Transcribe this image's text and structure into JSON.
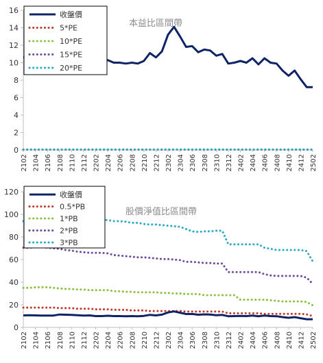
{
  "chart_data": [
    {
      "type": "line",
      "title": "本益比區間帶",
      "xlabel": "",
      "ylabel": "",
      "ylim": [
        0,
        16
      ],
      "yticks": [
        0,
        2,
        4,
        6,
        8,
        10,
        12,
        14,
        16
      ],
      "x_tick_labels": [
        "2102",
        "2104",
        "2106",
        "2108",
        "2110",
        "2112",
        "2202",
        "2204",
        "2206",
        "2208",
        "2210",
        "2212",
        "2302",
        "2304",
        "2306",
        "2308",
        "2310",
        "2312",
        "2402",
        "2404",
        "2406",
        "2408",
        "2410",
        "2412",
        "2502"
      ],
      "legend_position": "top-left",
      "grid": false,
      "colors": {
        "close": "#0d2366",
        "pe5": "#c0392b",
        "pe10": "#8bbf3e",
        "pe15": "#6b4c9a",
        "pe20": "#2aa9c2"
      },
      "series": [
        {
          "name": "收盤價",
          "key": "close",
          "style": "solid",
          "values": [
            10.6,
            10.7,
            10.6,
            10.5,
            10.4,
            10.5,
            11.4,
            11.2,
            11.0,
            10.7,
            10.4,
            10.6,
            10.0,
            10.0,
            10.3,
            10.0,
            10.0,
            9.9,
            10.0,
            9.9,
            10.2,
            11.1,
            10.6,
            11.3,
            13.2,
            14.1,
            13.0,
            11.8,
            11.9,
            11.2,
            11.5,
            11.4,
            10.8,
            11.0,
            9.9,
            10.0,
            10.2,
            10.0,
            10.5,
            9.8,
            10.5,
            10.0,
            9.9,
            9.1,
            8.5,
            9.1,
            8.1,
            7.2,
            7.2
          ]
        },
        {
          "name": "5*PE",
          "key": "pe5",
          "style": "dotted",
          "values": [
            0.05,
            0.05,
            0.05,
            0.05,
            0.05,
            0.05,
            0.05,
            0.05,
            0.05,
            0.05,
            0.05,
            0.05,
            0.05,
            0.05,
            0.05,
            0.05,
            0.05,
            0.05,
            0.05,
            0.05,
            0.05,
            0.05,
            0.05,
            0.05,
            0.05,
            0.05,
            0.05,
            0.05,
            0.05,
            0.05,
            0.05,
            0.05,
            0.05,
            0.05,
            0.05,
            0.05,
            0.05,
            0.05,
            0.05,
            0.05,
            0.05,
            0.05,
            0.05,
            0.05,
            0.05,
            0.05,
            0.05,
            0.05,
            0.05
          ]
        },
        {
          "name": "10*PE",
          "key": "pe10",
          "style": "dotted",
          "values": [
            0.05,
            0.05,
            0.05,
            0.05,
            0.05,
            0.05,
            0.05,
            0.05,
            0.05,
            0.05,
            0.05,
            0.05,
            0.05,
            0.05,
            0.05,
            0.05,
            0.05,
            0.05,
            0.05,
            0.05,
            0.05,
            0.05,
            0.05,
            0.05,
            0.05,
            0.05,
            0.05,
            0.05,
            0.05,
            0.05,
            0.05,
            0.05,
            0.05,
            0.05,
            0.05,
            0.05,
            0.05,
            0.05,
            0.05,
            0.05,
            0.05,
            0.05,
            0.05,
            0.05,
            0.05,
            0.05,
            0.05,
            0.05,
            0.05
          ]
        },
        {
          "name": "15*PE",
          "key": "pe15",
          "style": "dotted",
          "values": [
            0.05,
            0.05,
            0.05,
            0.05,
            0.05,
            0.05,
            0.05,
            0.05,
            0.05,
            0.05,
            0.05,
            0.05,
            0.05,
            0.05,
            0.05,
            0.05,
            0.05,
            0.05,
            0.05,
            0.05,
            0.05,
            0.05,
            0.05,
            0.05,
            0.05,
            0.05,
            0.05,
            0.05,
            0.05,
            0.05,
            0.05,
            0.05,
            0.05,
            0.05,
            0.05,
            0.05,
            0.05,
            0.05,
            0.05,
            0.05,
            0.05,
            0.05,
            0.05,
            0.05,
            0.05,
            0.05,
            0.05,
            0.05,
            0.05
          ]
        },
        {
          "name": "20*PE",
          "key": "pe20",
          "style": "dotted",
          "values": [
            0.05,
            0.05,
            0.05,
            0.05,
            0.05,
            0.05,
            0.05,
            0.05,
            0.05,
            0.05,
            0.05,
            0.05,
            0.05,
            0.05,
            0.05,
            0.05,
            0.05,
            0.05,
            0.05,
            0.05,
            0.05,
            0.05,
            0.05,
            0.05,
            0.05,
            0.05,
            0.05,
            0.05,
            0.05,
            0.05,
            0.05,
            0.05,
            0.05,
            0.05,
            0.05,
            0.05,
            0.05,
            0.05,
            0.05,
            0.05,
            0.05,
            0.05,
            0.05,
            0.05,
            0.05,
            0.05,
            0.05,
            0.05,
            0.05
          ]
        }
      ]
    },
    {
      "type": "line",
      "title": "股價淨值比區間帶",
      "xlabel": "",
      "ylabel": "",
      "ylim": [
        0,
        120
      ],
      "yticks": [
        0,
        20,
        40,
        60,
        80,
        100,
        120
      ],
      "x_tick_labels": [
        "2102",
        "2104",
        "2106",
        "2108",
        "2110",
        "2112",
        "2202",
        "2204",
        "2206",
        "2208",
        "2210",
        "2212",
        "2302",
        "2304",
        "2306",
        "2308",
        "2310",
        "2312",
        "2402",
        "2404",
        "2406",
        "2408",
        "2410",
        "2412",
        "2502"
      ],
      "legend_position": "top-left",
      "grid": false,
      "colors": {
        "close": "#0d2366",
        "pb05": "#c0392b",
        "pb1": "#8bbf3e",
        "pb2": "#6b4c9a",
        "pb3": "#2aa9c2"
      },
      "series": [
        {
          "name": "收盤價",
          "key": "close",
          "style": "solid",
          "values": [
            10.6,
            10.7,
            10.6,
            10.5,
            10.4,
            10.5,
            11.4,
            11.2,
            11.0,
            10.7,
            10.4,
            10.6,
            10.0,
            10.0,
            10.3,
            10.0,
            10.0,
            9.9,
            10.0,
            9.9,
            10.2,
            11.1,
            10.6,
            11.3,
            13.2,
            14.1,
            13.0,
            11.8,
            11.9,
            11.2,
            11.5,
            11.4,
            10.8,
            11.0,
            9.9,
            10.0,
            10.2,
            10.0,
            10.5,
            9.8,
            10.5,
            10.0,
            9.9,
            9.1,
            8.5,
            9.1,
            8.1,
            7.2,
            7.2
          ]
        },
        {
          "name": "0.5*PB",
          "key": "pb05",
          "style": "dotted",
          "values": [
            17.5,
            17.5,
            17.5,
            17.5,
            17.5,
            17.5,
            17.0,
            17.0,
            17.0,
            16.5,
            16.5,
            16.5,
            16.0,
            16.0,
            16.0,
            15.5,
            15.5,
            15.5,
            15.0,
            15.0,
            15.0,
            14.5,
            14.5,
            14.5,
            14.5,
            14.5,
            14.5,
            14.0,
            14.0,
            14.0,
            14.0,
            14.0,
            14.0,
            14.0,
            12.5,
            12.5,
            12.5,
            12.5,
            12.5,
            12.5,
            12.0,
            12.0,
            12.0,
            12.0,
            12.0,
            12.0,
            12.0,
            11.5,
            10.0
          ]
        },
        {
          "name": "1*PB",
          "key": "pb1",
          "style": "dotted",
          "values": [
            35.0,
            35.0,
            35.5,
            35.5,
            35.5,
            35.0,
            34.5,
            34.0,
            34.0,
            33.5,
            33.5,
            33.0,
            33.0,
            33.0,
            33.0,
            32.0,
            32.0,
            31.5,
            31.5,
            31.0,
            31.0,
            31.0,
            31.0,
            30.5,
            30.5,
            30.0,
            30.0,
            29.5,
            29.5,
            29.5,
            28.5,
            28.5,
            28.5,
            28.5,
            28.5,
            28.5,
            24.5,
            24.5,
            24.5,
            24.5,
            24.5,
            24.0,
            23.5,
            23.0,
            23.0,
            23.0,
            23.0,
            22.5,
            19.5
          ]
        },
        {
          "name": "2*PB",
          "key": "pb2",
          "style": "dotted",
          "values": [
            70.5,
            70.5,
            71.0,
            71.0,
            70.5,
            70.0,
            69.5,
            68.5,
            68.0,
            67.0,
            66.5,
            66.0,
            66.0,
            66.0,
            65.5,
            64.0,
            63.5,
            63.0,
            62.5,
            62.0,
            62.0,
            61.5,
            61.0,
            60.5,
            60.5,
            60.0,
            59.5,
            58.0,
            58.0,
            57.5,
            57.0,
            57.0,
            56.5,
            56.5,
            49.0,
            49.0,
            49.0,
            49.0,
            49.0,
            49.0,
            47.0,
            46.0,
            45.5,
            45.5,
            45.5,
            45.5,
            45.5,
            44.0,
            38.5
          ]
        },
        {
          "name": "3*PB",
          "key": "pb3",
          "style": "dotted",
          "values": [
            94.0,
            94.5,
            95.0,
            95.5,
            96.0,
            97.0,
            98.0,
            99.0,
            100.0,
            100.0,
            100.0,
            98.0,
            96.0,
            95.0,
            95.0,
            94.0,
            94.0,
            93.5,
            92.5,
            92.5,
            91.5,
            91.0,
            91.0,
            90.5,
            90.0,
            89.5,
            89.0,
            87.0,
            85.0,
            84.5,
            85.0,
            85.0,
            85.5,
            85.5,
            73.5,
            73.5,
            73.5,
            73.5,
            73.5,
            73.5,
            70.5,
            69.5,
            68.5,
            68.5,
            68.5,
            68.5,
            68.5,
            67.5,
            58.5
          ]
        }
      ]
    }
  ]
}
